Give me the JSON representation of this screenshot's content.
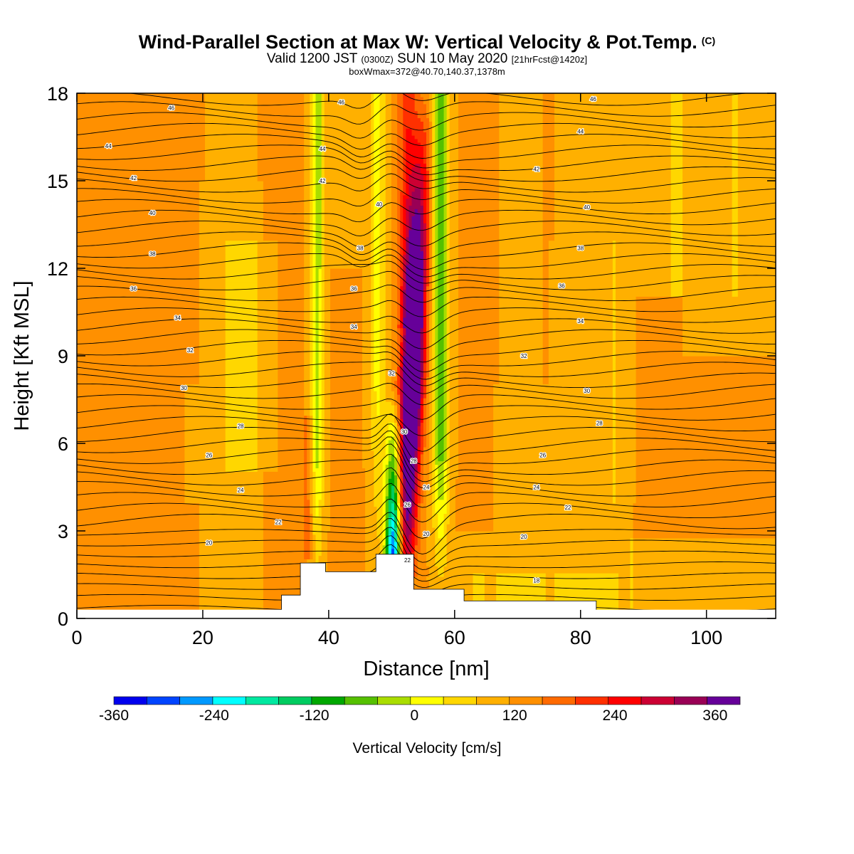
{
  "header": {
    "title": "Wind-Parallel Section at Max W: Vertical Velocity & Pot.Temp.",
    "copyright": "(C)",
    "valid_prefix": "Valid 1200 JST",
    "valid_zulu": "(0300Z)",
    "valid_date": "SUN 10 May 2020",
    "forecast": "[21hrFcst@1420z]",
    "boxwmax": "boxWmax=372@40.70,140.37,1378m"
  },
  "chart_data": {
    "type": "heatmap",
    "title": "Wind-Parallel Section at Max W: Vertical Velocity & Pot.Temp.",
    "xlabel": "Distance [nm]",
    "ylabel": "Height [Kft MSL]",
    "xlim": [
      0,
      111
    ],
    "ylim": [
      0,
      18
    ],
    "xticks": [
      "0",
      "20",
      "40",
      "60",
      "80",
      "100"
    ],
    "yticks": [
      "0",
      "3",
      "6",
      "9",
      "12",
      "15",
      "18"
    ],
    "colorbar": {
      "label": "Vertical Velocity [cm/s]",
      "tick_labels": [
        "-360",
        "-240",
        "-120",
        "0",
        "120",
        "240",
        "360"
      ],
      "levels": [
        -360,
        -330,
        -300,
        -270,
        -240,
        -210,
        -180,
        -150,
        -120,
        -90,
        -60,
        -30,
        0,
        30,
        60,
        90,
        120,
        150,
        180,
        210,
        240,
        270,
        300,
        330,
        360,
        390
      ],
      "colors": [
        "#0000ee",
        "#0044ff",
        "#0099ff",
        "#00ffff",
        "#00e8a0",
        "#00cc60",
        "#00a800",
        "#55c000",
        "#aadd00",
        "#ffff00",
        "#ffd700",
        "#ffb000",
        "#ff9000",
        "#ff6a00",
        "#ff3000",
        "#ff0000",
        "#cc0033",
        "#990055",
        "#660099"
      ]
    },
    "updraft": {
      "x": 54,
      "peak_cm_s": 360
    },
    "downdraft": {
      "x": 50,
      "peak_cm_s": -330
    },
    "terrain": [
      {
        "x": 32.5,
        "h": 0.8
      },
      {
        "x": 35.5,
        "h": 1.9
      },
      {
        "x": 39.5,
        "h": 1.6
      },
      {
        "x": 45.5,
        "h": 1.6
      },
      {
        "x": 47.5,
        "h": 2.2
      },
      {
        "x": 51.5,
        "h": 2.2
      },
      {
        "x": 53.5,
        "h": 1.0
      },
      {
        "x": 61.5,
        "h": 0.6
      },
      {
        "x": 76.5,
        "h": 0.6
      }
    ],
    "theta_labels": [
      {
        "x": 15,
        "y": 17.5,
        "t": "46"
      },
      {
        "x": 42,
        "y": 17.7,
        "t": "46"
      },
      {
        "x": 82,
        "y": 17.8,
        "t": "46"
      },
      {
        "x": 5,
        "y": 16.2,
        "t": "44"
      },
      {
        "x": 39,
        "y": 16.1,
        "t": "44"
      },
      {
        "x": 80,
        "y": 16.7,
        "t": "44"
      },
      {
        "x": 9,
        "y": 15.1,
        "t": "42"
      },
      {
        "x": 39,
        "y": 15.0,
        "t": "42"
      },
      {
        "x": 73,
        "y": 15.4,
        "t": "42"
      },
      {
        "x": 12,
        "y": 13.9,
        "t": "40"
      },
      {
        "x": 48,
        "y": 14.2,
        "t": "40"
      },
      {
        "x": 81,
        "y": 14.1,
        "t": "40"
      },
      {
        "x": 12,
        "y": 12.5,
        "t": "38"
      },
      {
        "x": 45,
        "y": 12.7,
        "t": "38"
      },
      {
        "x": 80,
        "y": 12.7,
        "t": "38"
      },
      {
        "x": 9,
        "y": 11.3,
        "t": "36"
      },
      {
        "x": 44,
        "y": 11.3,
        "t": "36"
      },
      {
        "x": 77,
        "y": 11.4,
        "t": "36"
      },
      {
        "x": 16,
        "y": 10.3,
        "t": "34"
      },
      {
        "x": 44,
        "y": 10.0,
        "t": "34"
      },
      {
        "x": 80,
        "y": 10.2,
        "t": "34"
      },
      {
        "x": 18,
        "y": 9.2,
        "t": "32"
      },
      {
        "x": 50,
        "y": 8.4,
        "t": "32"
      },
      {
        "x": 71,
        "y": 9.0,
        "t": "32"
      },
      {
        "x": 17,
        "y": 7.9,
        "t": "30"
      },
      {
        "x": 52,
        "y": 6.4,
        "t": "30"
      },
      {
        "x": 81,
        "y": 7.8,
        "t": "30"
      },
      {
        "x": 26,
        "y": 6.6,
        "t": "28"
      },
      {
        "x": 53.5,
        "y": 5.4,
        "t": "28"
      },
      {
        "x": 83,
        "y": 6.7,
        "t": "28"
      },
      {
        "x": 21,
        "y": 5.6,
        "t": "26"
      },
      {
        "x": 52.5,
        "y": 3.9,
        "t": "26"
      },
      {
        "x": 74,
        "y": 5.6,
        "t": "26"
      },
      {
        "x": 26,
        "y": 4.4,
        "t": "24"
      },
      {
        "x": 55.5,
        "y": 4.5,
        "t": "24"
      },
      {
        "x": 73,
        "y": 4.5,
        "t": "24"
      },
      {
        "x": 32,
        "y": 3.3,
        "t": "22"
      },
      {
        "x": 52.5,
        "y": 2.0,
        "t": "22"
      },
      {
        "x": 78,
        "y": 3.8,
        "t": "22"
      },
      {
        "x": 21,
        "y": 2.6,
        "t": "20"
      },
      {
        "x": 55.5,
        "y": 2.9,
        "t": "20"
      },
      {
        "x": 71,
        "y": 2.8,
        "t": "20"
      },
      {
        "x": 73,
        "y": 1.3,
        "t": "18"
      }
    ]
  }
}
